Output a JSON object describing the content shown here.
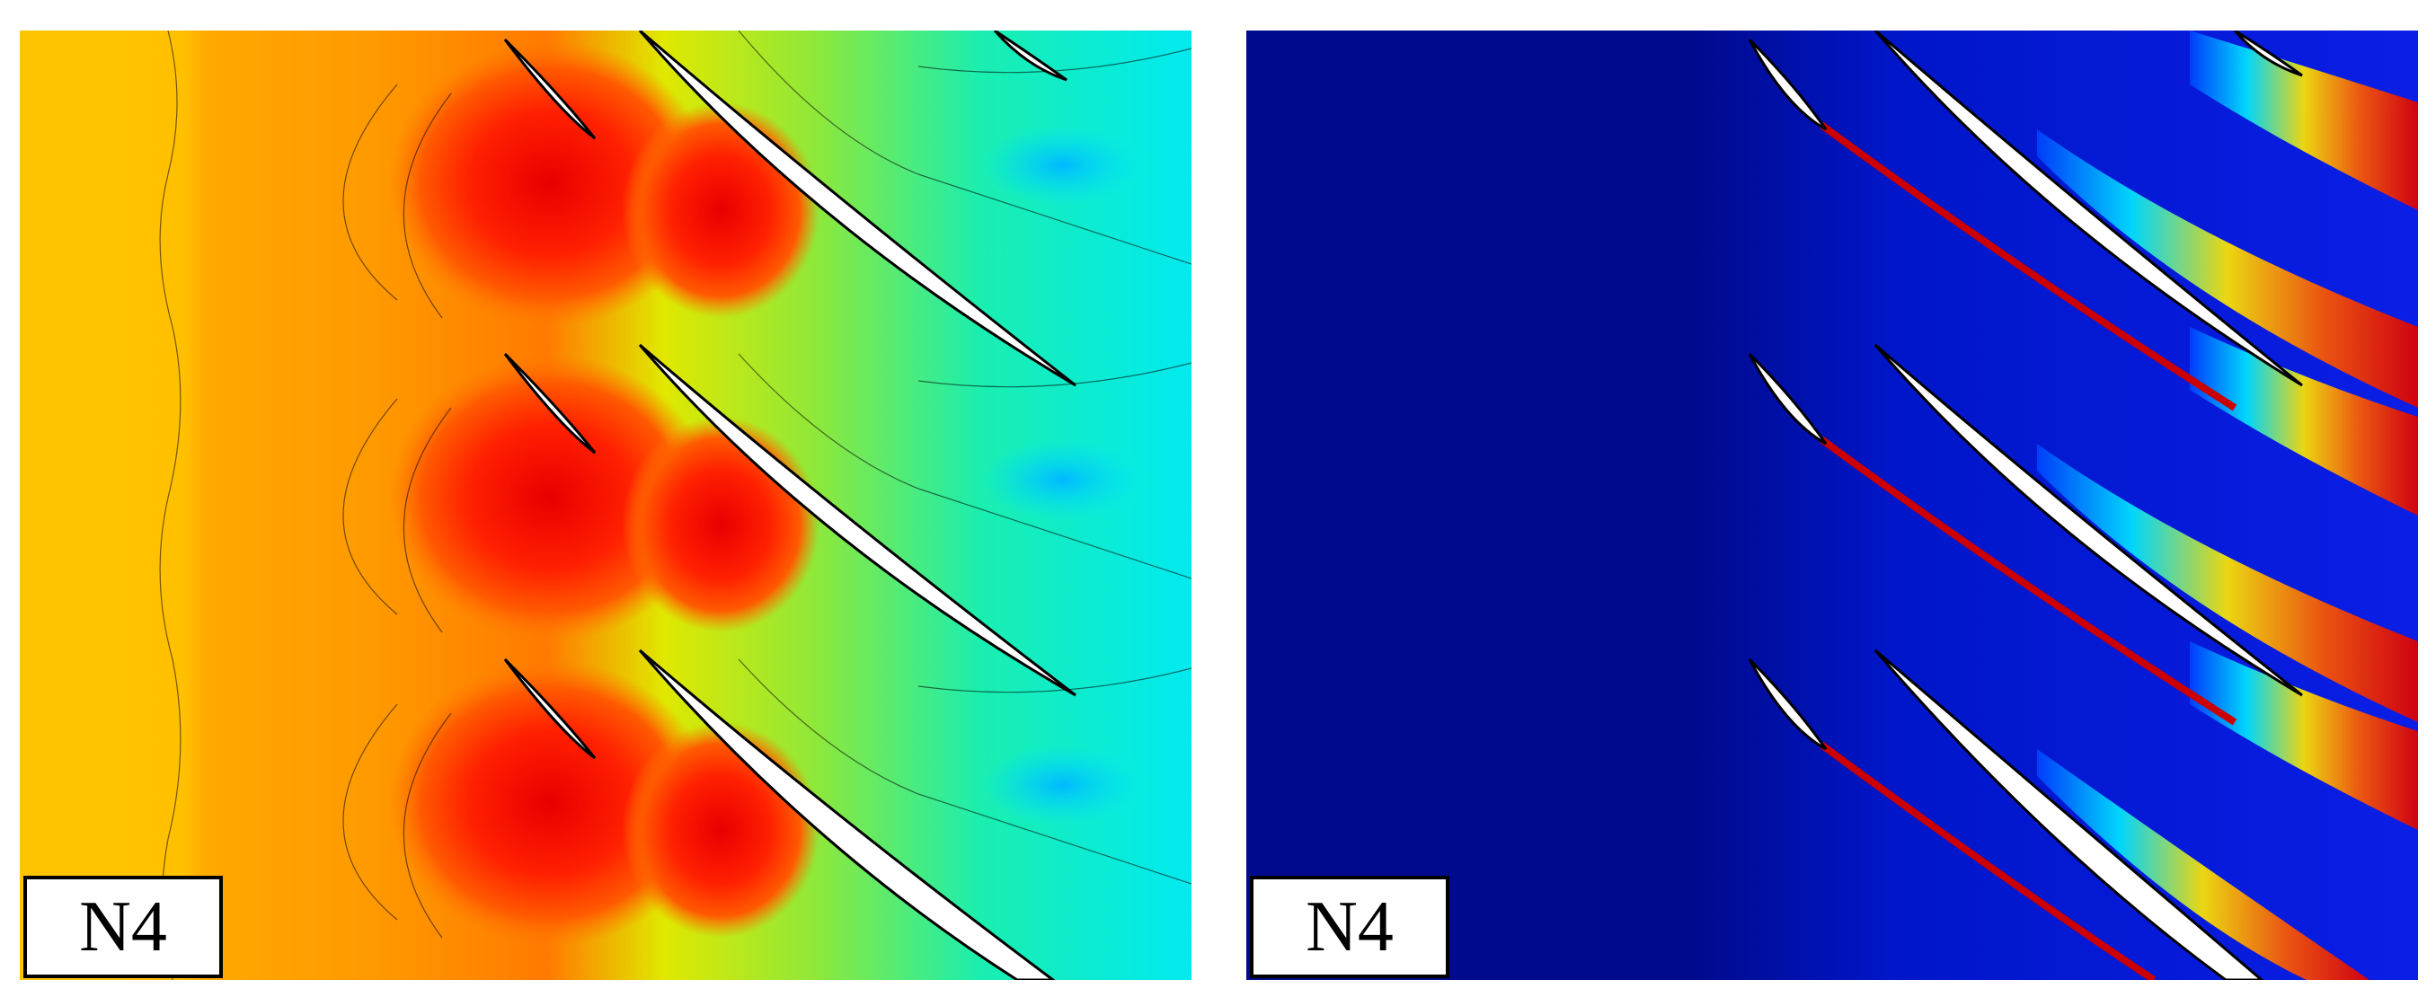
{
  "panels": [
    {
      "id": "left",
      "label": "N4",
      "colormap": "pressure-contour"
    },
    {
      "id": "right",
      "label": "N4",
      "colormap": "wake-contour"
    }
  ],
  "colors": {
    "deep_blue": "#000a8c",
    "blue": "#0a1ee6",
    "cyan": "#00e6ff",
    "green": "#00e676",
    "yellow": "#e8f000",
    "orange": "#ffa500",
    "red": "#ff1a00",
    "dark_red": "#cc0000",
    "white": "#ffffff",
    "black": "#000000"
  },
  "icons": {
    "blade": "airfoil-blade-shape"
  }
}
